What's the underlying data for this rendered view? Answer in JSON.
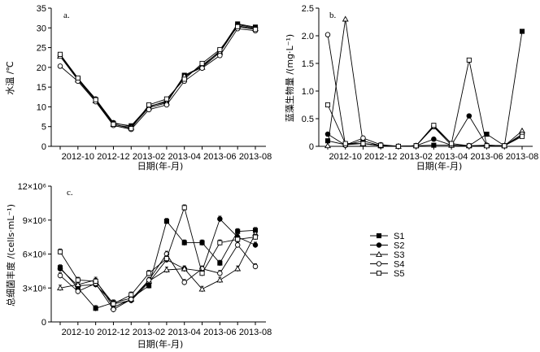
{
  "chart_data": [
    {
      "type": "line",
      "panel_label": "a.",
      "ylabel": "水温 /℃",
      "xlabel": "",
      "ylim": [
        0,
        35
      ],
      "yticks": [
        "0",
        "5",
        "10",
        "15",
        "20",
        "25",
        "30",
        "35"
      ],
      "x_ticks": [
        "2012-10",
        "2012-12",
        "2013-02",
        "2013-04",
        "2013-06",
        "2013-08"
      ],
      "series": [
        {
          "name": "S1",
          "values": [
            23.0,
            17.0,
            11.8,
            5.8,
            5.2,
            10.2,
            11.2,
            18.0,
            20.2,
            24.2,
            31.0,
            30.2
          ]
        },
        {
          "name": "S2",
          "values": [
            23.0,
            17.2,
            12.0,
            6.0,
            5.0,
            10.0,
            11.5,
            17.5,
            20.5,
            24.0,
            30.8,
            30.0
          ]
        },
        {
          "name": "S3",
          "values": [
            22.8,
            16.8,
            11.5,
            5.5,
            4.8,
            9.8,
            11.0,
            17.8,
            20.0,
            23.8,
            30.5,
            29.8
          ]
        },
        {
          "name": "S4",
          "values": [
            20.3,
            16.5,
            11.3,
            5.3,
            4.3,
            9.3,
            10.5,
            16.5,
            19.8,
            23.0,
            29.8,
            29.3
          ]
        },
        {
          "name": "S5",
          "values": [
            23.3,
            17.3,
            11.8,
            5.6,
            4.5,
            10.5,
            12.0,
            17.0,
            21.0,
            24.5,
            30.3,
            29.6
          ]
        }
      ]
    },
    {
      "type": "line",
      "panel_label": "b.",
      "ylabel": "蓝藻生物量 /(mg·L⁻¹)",
      "xlabel": "日期(年-月)",
      "ylim": [
        0,
        2.5
      ],
      "yticks": [
        "0",
        "0.5",
        "1.0",
        "1.5",
        "2.0",
        "2.5"
      ],
      "x_ticks": [
        "2012-10",
        "2012-12",
        "2013-02",
        "2013-04",
        "2013-06",
        "2013-08"
      ],
      "series": [
        {
          "name": "S1",
          "values": [
            0.1,
            0.03,
            0.05,
            0.01,
            0.0,
            0.01,
            0.02,
            0.02,
            0.01,
            0.22,
            0.01,
            2.08
          ]
        },
        {
          "name": "S2",
          "values": [
            0.22,
            0.02,
            0.1,
            0.01,
            0.0,
            0.01,
            0.13,
            0.02,
            0.55,
            0.02,
            0.01,
            0.2
          ]
        },
        {
          "name": "S3",
          "values": [
            0.01,
            2.3,
            0.05,
            0.01,
            0.0,
            0.01,
            0.35,
            0.02,
            0.01,
            0.01,
            0.01,
            0.28
          ]
        },
        {
          "name": "S4",
          "values": [
            2.02,
            0.02,
            0.15,
            0.03,
            0.0,
            0.01,
            0.36,
            0.05,
            0.01,
            0.02,
            0.01,
            0.22
          ]
        },
        {
          "name": "S5",
          "values": [
            0.75,
            0.05,
            0.05,
            0.02,
            0.0,
            0.01,
            0.38,
            0.05,
            1.56,
            0.01,
            0.01,
            0.18
          ]
        }
      ]
    },
    {
      "type": "line",
      "panel_label": "c.",
      "ylabel": "总细菌丰度 /(cells·mL⁻¹)",
      "xlabel": "日期(年-月)",
      "ylim": [
        0,
        12000000
      ],
      "yticks": [
        "0",
        "3×10⁶",
        "6×10⁶",
        "9×10⁶",
        "12×10⁶"
      ],
      "x_ticks": [
        "2012-10",
        "2012-12",
        "2013-02",
        "2013-04",
        "2013-06",
        "2013-08"
      ],
      "series": [
        {
          "name": "S1",
          "values": [
            4.8,
            3.0,
            1.2,
            1.7,
            2.1,
            3.2,
            8.9,
            7.0,
            7.0,
            5.2,
            8.0,
            8.1
          ]
        },
        {
          "name": "S2",
          "values": [
            4.7,
            3.2,
            3.3,
            1.6,
            1.9,
            3.5,
            5.5,
            4.7,
            4.5,
            9.1,
            7.5,
            6.8
          ]
        },
        {
          "name": "S3",
          "values": [
            3.0,
            3.3,
            3.7,
            1.3,
            2.0,
            3.6,
            4.6,
            4.7,
            2.9,
            3.7,
            4.7,
            7.8
          ]
        },
        {
          "name": "S4",
          "values": [
            4.1,
            2.7,
            3.4,
            1.1,
            2.0,
            3.7,
            6.0,
            3.5,
            4.7,
            4.3,
            6.8,
            4.9
          ]
        },
        {
          "name": "S5",
          "values": [
            6.2,
            3.7,
            3.6,
            1.6,
            2.4,
            4.3,
            5.6,
            10.1,
            4.3,
            7.0,
            7.3,
            7.5
          ]
        }
      ]
    }
  ],
  "legend": {
    "entries": [
      {
        "name": "S1",
        "marker": "filled-square"
      },
      {
        "name": "S2",
        "marker": "filled-circle"
      },
      {
        "name": "S3",
        "marker": "open-triangle"
      },
      {
        "name": "S4",
        "marker": "open-circle"
      },
      {
        "name": "S5",
        "marker": "open-square"
      }
    ]
  },
  "xlabel_shared": "日期(年-月)",
  "months_sampled": [
    "2012-09",
    "2012-10",
    "2012-11",
    "2012-12",
    "2013-01",
    "2013-02",
    "2013-03",
    "2013-04",
    "2013-05",
    "2013-06",
    "2013-07",
    "2013-08"
  ]
}
